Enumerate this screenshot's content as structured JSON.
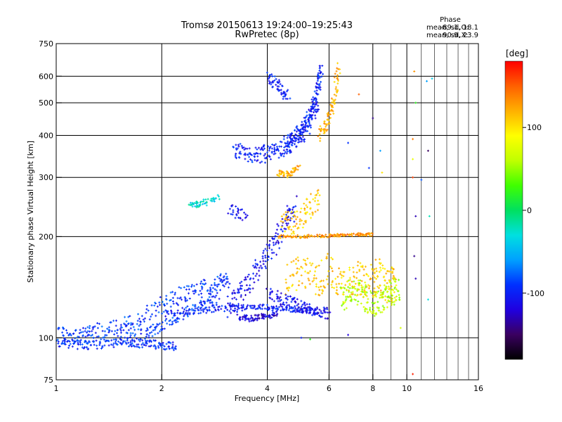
{
  "chart_data": {
    "type": "scatter",
    "title": "Tromsø 20150613 19:24:00–19:25:43",
    "subtitle": "RwPretec (8p)",
    "xlabel": "Frequency [MHz]",
    "ylabel": "Stationary phase Virtual Height [km]",
    "x_scale": "log2",
    "y_scale": "log",
    "xlim": [
      1,
      16
    ],
    "ylim": [
      75,
      750
    ],
    "x_ticks": [
      1,
      2,
      4,
      6,
      8,
      10,
      16
    ],
    "x_minor_ticks": [
      9,
      11,
      12,
      13,
      14,
      15
    ],
    "y_ticks": [
      75,
      100,
      200,
      300,
      400,
      500,
      600,
      750
    ],
    "grid": true,
    "stats": {
      "heading": "Phase",
      "o_label": "mean, sd,O:",
      "o_values": "-89.1, 18.1",
      "x_label": "mean, sd,X:",
      "x_values": "90.9, 23.9"
    },
    "colorbar": {
      "title": "[deg]",
      "range": [
        -180,
        180
      ],
      "ticks": [
        100,
        0,
        -100
      ],
      "colors": [
        "#000000",
        "#3a0060",
        "#2000e0",
        "#0030ff",
        "#00a0ff",
        "#00e0e0",
        "#00e060",
        "#40ff00",
        "#c0ff00",
        "#ffff00",
        "#ffb000",
        "#ff6000",
        "#ff0000"
      ]
    },
    "traces": [
      {
        "freq": [
          1.0,
          1.1,
          1.2,
          1.3,
          1.5,
          1.7,
          2.0,
          2.3,
          2.6,
          2.9,
          3.1
        ],
        "height": [
          102,
          100,
          101,
          104,
          108,
          113,
          125,
          135,
          140,
          145,
          150
        ],
        "phase": -90,
        "spread": 0.06
      },
      {
        "freq": [
          1.0,
          1.2,
          1.4,
          1.6,
          1.8,
          2.0,
          2.2
        ],
        "height": [
          97,
          95,
          96,
          97,
          96,
          95,
          94
        ],
        "phase": -95,
        "spread": 0.03
      },
      {
        "freq": [
          1.5,
          1.8,
          2.0,
          2.3,
          2.6,
          2.9
        ],
        "height": [
          100,
          103,
          108,
          118,
          125,
          130
        ],
        "phase": -90,
        "spread": 0.04
      },
      {
        "freq": [
          2.0,
          2.5,
          3.0,
          3.5,
          4.0,
          4.5,
          5.0,
          5.5
        ],
        "height": [
          118,
          120,
          122,
          123,
          123,
          122,
          121,
          120
        ],
        "phase": -100,
        "spread": 0.02
      },
      {
        "freq": [
          3.1,
          3.3,
          3.6,
          3.9,
          4.2,
          4.5,
          4.8
        ],
        "height": [
          122,
          132,
          150,
          170,
          190,
          220,
          245
        ],
        "phase": -110,
        "spread": 0.08
      },
      {
        "freq": [
          3.2,
          3.5,
          3.8,
          4.1,
          4.4,
          4.7,
          5.0,
          5.3,
          5.6
        ],
        "height": [
          360,
          350,
          350,
          355,
          365,
          380,
          400,
          440,
          520
        ],
        "phase": -100,
        "spread": 0.06
      },
      {
        "freq": [
          4.5,
          4.8,
          5.1,
          5.4,
          5.6,
          5.7
        ],
        "height": [
          380,
          400,
          430,
          480,
          560,
          640
        ],
        "phase": -100,
        "spread": 0.04
      },
      {
        "freq": [
          4.0,
          4.3,
          4.6
        ],
        "height": [
          600,
          560,
          520
        ],
        "phase": -100,
        "spread": 0.04
      },
      {
        "freq": [
          5.6,
          5.9,
          6.2,
          6.4
        ],
        "height": [
          400,
          430,
          500,
          640
        ],
        "phase": 120,
        "spread": 0.04
      },
      {
        "freq": [
          4.3,
          4.6,
          4.9
        ],
        "height": [
          310,
          305,
          320
        ],
        "phase": 120,
        "spread": 0.02
      },
      {
        "freq": [
          4.4,
          4.8,
          5.2,
          5.6
        ],
        "height": [
          230,
          215,
          240,
          260
        ],
        "phase": 110,
        "spread": 0.08
      },
      {
        "freq": [
          4.3,
          5.0,
          5.8,
          6.5,
          7.3,
          8.0
        ],
        "height": [
          200,
          200,
          201,
          202,
          203,
          203
        ],
        "phase": 130,
        "spread": 0.01
      },
      {
        "freq": [
          4.5,
          5.0,
          5.5,
          6.0,
          6.6,
          7.2,
          7.8,
          8.3,
          8.8,
          9.3
        ],
        "height": [
          150,
          160,
          145,
          160,
          140,
          150,
          145,
          155,
          140,
          150
        ],
        "phase": 110,
        "spread": 0.12
      },
      {
        "freq": [
          6.5,
          7.0,
          7.5,
          8.0,
          8.5,
          9.0,
          9.5
        ],
        "height": [
          130,
          140,
          135,
          125,
          130,
          135,
          140
        ],
        "phase": 60,
        "spread": 0.09
      },
      {
        "freq": [
          2.4,
          2.6,
          2.9
        ],
        "height": [
          248,
          250,
          262
        ],
        "phase": -30,
        "spread": 0.02
      },
      {
        "freq": [
          3.1,
          3.5
        ],
        "height": [
          240,
          230
        ],
        "phase": -110,
        "spread": 0.04
      },
      {
        "freq": [
          3.3,
          3.6,
          3.9,
          4.3
        ],
        "height": [
          115,
          114,
          116,
          118
        ],
        "phase": -120,
        "spread": 0.02
      },
      {
        "freq": [
          4.0,
          4.5,
          5.0,
          5.5,
          6.0
        ],
        "height": [
          135,
          130,
          125,
          120,
          118
        ],
        "phase": -110,
        "spread": 0.04
      }
    ],
    "isolated_points": [
      {
        "freq": 10.5,
        "height": 620,
        "phase": 130
      },
      {
        "freq": 11.4,
        "height": 580,
        "phase": -60
      },
      {
        "freq": 11.8,
        "height": 590,
        "phase": -40
      },
      {
        "freq": 10.6,
        "height": 500,
        "phase": 20
      },
      {
        "freq": 10.4,
        "height": 390,
        "phase": 140
      },
      {
        "freq": 10.4,
        "height": 340,
        "phase": 80
      },
      {
        "freq": 10.4,
        "height": 300,
        "phase": 160
      },
      {
        "freq": 11.5,
        "height": 360,
        "phase": -150
      },
      {
        "freq": 11.0,
        "height": 295,
        "phase": -80
      },
      {
        "freq": 10.6,
        "height": 230,
        "phase": -130
      },
      {
        "freq": 11.6,
        "height": 230,
        "phase": -20
      },
      {
        "freq": 10.5,
        "height": 175,
        "phase": -140
      },
      {
        "freq": 10.6,
        "height": 150,
        "phase": -130
      },
      {
        "freq": 11.5,
        "height": 130,
        "phase": -30
      },
      {
        "freq": 10.4,
        "height": 78,
        "phase": 170
      },
      {
        "freq": 9.6,
        "height": 107,
        "phase": 70
      },
      {
        "freq": 8.0,
        "height": 450,
        "phase": -140
      },
      {
        "freq": 7.3,
        "height": 530,
        "phase": 150
      },
      {
        "freq": 8.5,
        "height": 310,
        "phase": 100
      },
      {
        "freq": 8.4,
        "height": 360,
        "phase": -60
      },
      {
        "freq": 7.8,
        "height": 320,
        "phase": -90
      },
      {
        "freq": 6.8,
        "height": 380,
        "phase": -90
      },
      {
        "freq": 5.0,
        "height": 100,
        "phase": -100
      },
      {
        "freq": 5.3,
        "height": 99,
        "phase": 20
      },
      {
        "freq": 6.8,
        "height": 102,
        "phase": -120
      }
    ]
  }
}
